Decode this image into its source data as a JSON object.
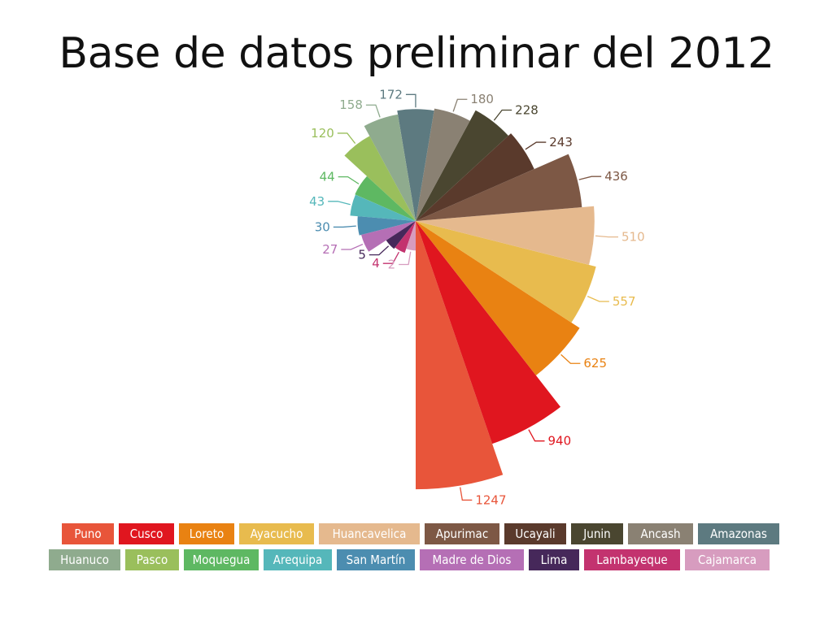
{
  "title": "Base de datos preliminar del 2012",
  "chart_data": {
    "type": "pie",
    "subtype": "rose (variable-radius slices, equal angles)",
    "categories": [
      "Puno",
      "Cusco",
      "Loreto",
      "Ayacucho",
      "Huancavelica",
      "Apurimac",
      "Ucayali",
      "Junin",
      "Ancash",
      "Amazonas",
      "Huanuco",
      "Pasco",
      "Moquegua",
      "Arequipa",
      "San Martín",
      "Madre de Dios",
      "Lima",
      "Lambayeque",
      "Cajamarca"
    ],
    "values": [
      1247,
      940,
      625,
      557,
      510,
      436,
      243,
      228,
      180,
      172,
      158,
      120,
      44,
      43,
      30,
      27,
      5,
      4,
      2
    ],
    "colors": [
      "#e8553a",
      "#e0161f",
      "#e98212",
      "#e8bb4e",
      "#e5b98e",
      "#7d5845",
      "#5a3a2c",
      "#4a4630",
      "#8a8173",
      "#5d7a80",
      "#8fab8e",
      "#9abf5c",
      "#5eb862",
      "#55b7ba",
      "#4c8db0",
      "#b56fb5",
      "#46285a",
      "#c3336f",
      "#d79cbf"
    ],
    "legend_position": "bottom",
    "legend_rows": [
      [
        "Puno",
        "Cusco",
        "Loreto",
        "Ayacucho",
        "Huancavelica",
        "Apurimac",
        "Ucayali",
        "Junin",
        "Ancash",
        "Amazonas"
      ],
      [
        "Huanuco",
        "Pasco",
        "Moquegua",
        "Arequipa",
        "San Martín",
        "Madre de Dios",
        "Lima",
        "Lambayeque",
        "Cajamarca"
      ]
    ]
  }
}
